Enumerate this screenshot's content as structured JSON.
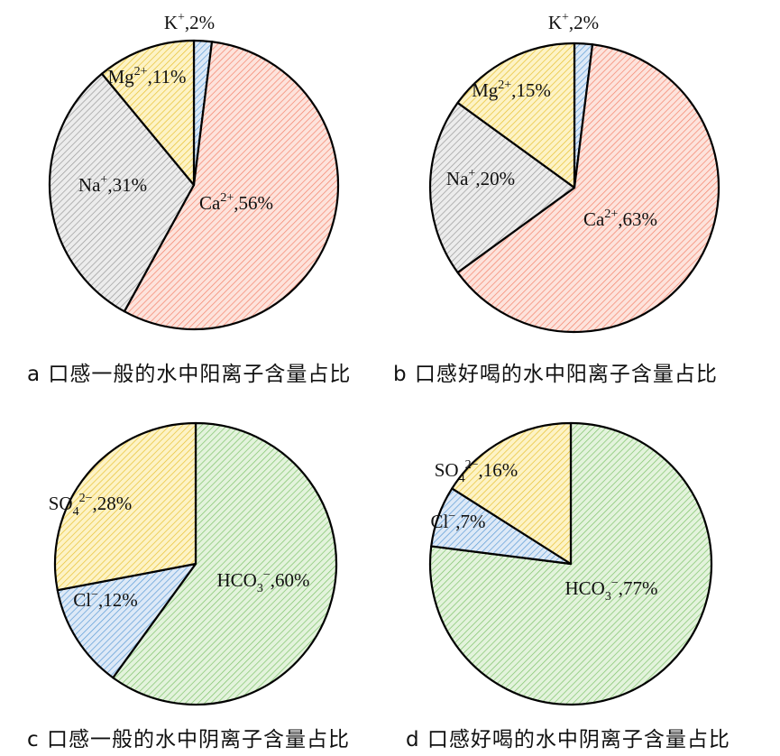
{
  "chart_data": [
    {
      "type": "pie",
      "title": "a 口感一般的水中阳离子含量占比",
      "slices": [
        {
          "label": "K",
          "sup": "+",
          "sub": "",
          "value": 2,
          "pct": "2%",
          "color": "#5b9bd5",
          "fill": "#dde9f7"
        },
        {
          "label": "Ca",
          "sup": "2+",
          "sub": "",
          "value": 56,
          "pct": "56%",
          "color": "#f4836b",
          "fill": "#fde3dc"
        },
        {
          "label": "Na",
          "sup": "+",
          "sub": "",
          "value": 31,
          "pct": "31%",
          "color": "#9a9a9a",
          "fill": "#ececec"
        },
        {
          "label": "Mg",
          "sup": "2+",
          "sub": "",
          "value": 11,
          "pct": "11%",
          "color": "#e8c132",
          "fill": "#fdf3c6"
        }
      ]
    },
    {
      "type": "pie",
      "title": "b 口感好喝的水中阳离子含量占比",
      "slices": [
        {
          "label": "K",
          "sup": "+",
          "sub": "",
          "value": 2,
          "pct": "2%",
          "color": "#5b9bd5",
          "fill": "#dde9f7"
        },
        {
          "label": "Ca",
          "sup": "2+",
          "sub": "",
          "value": 63,
          "pct": "63%",
          "color": "#f4836b",
          "fill": "#fde3dc"
        },
        {
          "label": "Na",
          "sup": "+",
          "sub": "",
          "value": 20,
          "pct": "20%",
          "color": "#9a9a9a",
          "fill": "#ececec"
        },
        {
          "label": "Mg",
          "sup": "2+",
          "sub": "",
          "value": 15,
          "pct": "15%",
          "color": "#e8c132",
          "fill": "#fdf3c6"
        }
      ]
    },
    {
      "type": "pie",
      "title": "c 口感一般的水中阴离子含量占比",
      "slices": [
        {
          "label": "HCO",
          "sup": "−",
          "sub": "3",
          "value": 60,
          "pct": "60%",
          "color": "#7fc36b",
          "fill": "#e3f3dc"
        },
        {
          "label": "Cl",
          "sup": "−",
          "sub": "",
          "value": 12,
          "pct": "12%",
          "color": "#5b9bd5",
          "fill": "#dde9f7"
        },
        {
          "label": "SO",
          "sup": "2−",
          "sub": "4",
          "value": 28,
          "pct": "28%",
          "color": "#e8c132",
          "fill": "#fdf3c6"
        }
      ]
    },
    {
      "type": "pie",
      "title": "d 口感好喝的水中阴离子含量占比",
      "slices": [
        {
          "label": "HCO",
          "sup": "−",
          "sub": "3",
          "value": 77,
          "pct": "77%",
          "color": "#7fc36b",
          "fill": "#e3f3dc"
        },
        {
          "label": "Cl",
          "sup": "−",
          "sub": "",
          "value": 7,
          "pct": "7%",
          "color": "#5b9bd5",
          "fill": "#dde9f7"
        },
        {
          "label": "SO",
          "sup": "2−",
          "sub": "4",
          "value": 16,
          "pct": "16%",
          "color": "#e8c132",
          "fill": "#fdf3c6"
        }
      ]
    }
  ]
}
